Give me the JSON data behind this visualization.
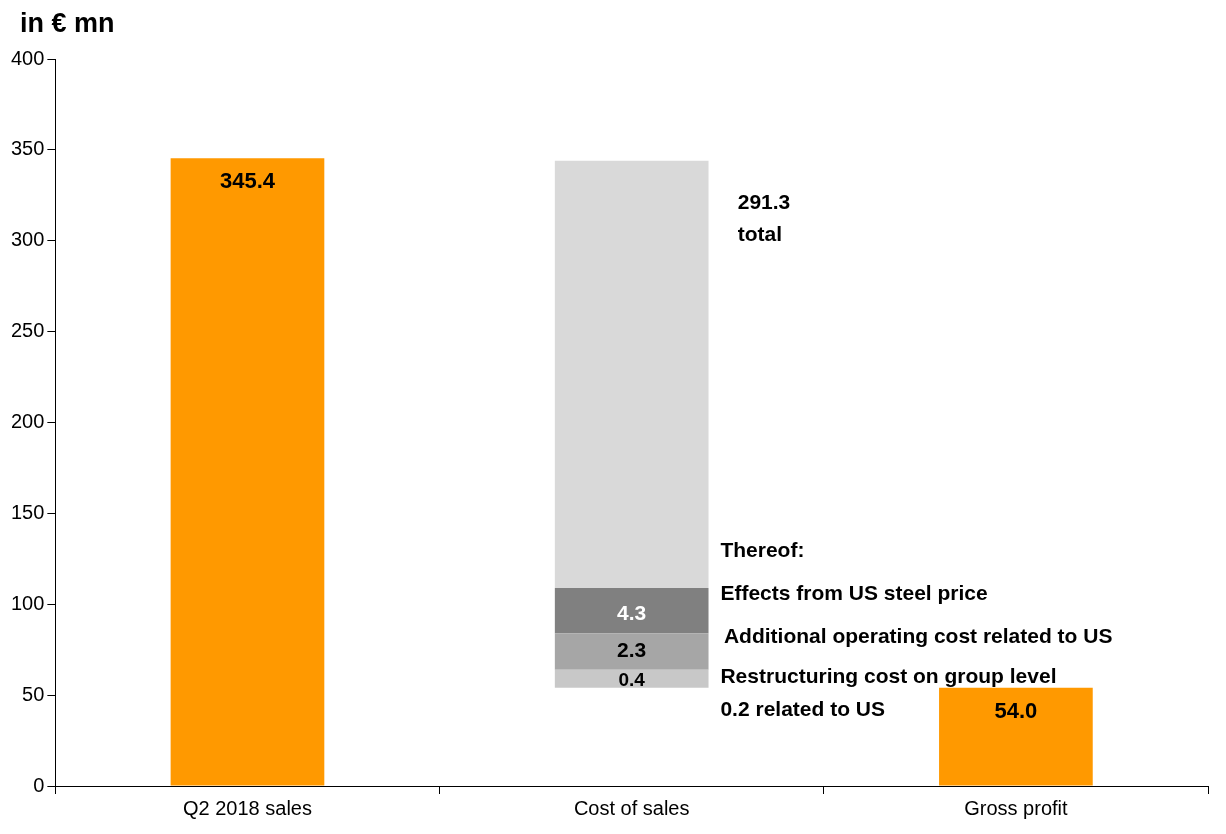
{
  "chart_data": {
    "type": "bar",
    "ylabel": "in € mn",
    "categories": [
      "Q2 2018 sales",
      "Cost of sales",
      "Gross profit"
    ],
    "series": [
      {
        "colors": [
          "#ff9900",
          "#c8c8c8",
          "#ff9900"
        ],
        "base": [
          0,
          54,
          0
        ],
        "values": [
          345.4,
          10,
          54.0
        ],
        "value_labels": [
          "345.4",
          null,
          "54.0"
        ]
      },
      {
        "color": "#a6a6a6",
        "base": [
          null,
          64,
          null
        ],
        "values": [
          null,
          20,
          null
        ]
      },
      {
        "color": "#808080",
        "base": [
          null,
          84,
          null
        ],
        "values": [
          null,
          25,
          null
        ]
      },
      {
        "color": "#d9d9d9",
        "base": [
          null,
          109,
          null
        ],
        "values": [
          null,
          235,
          null
        ]
      }
    ],
    "annotations": [
      "291.3",
      "total",
      "Thereof:",
      "Effects from US steel price",
      "Additional operating cost related to US",
      "Restructuring cost on group level",
      "0.2 related to US",
      "4.3",
      "2.3",
      "0.4"
    ],
    "ylim": [
      0,
      400
    ],
    "yticks": [
      0,
      50,
      100,
      150,
      200,
      250,
      300,
      350,
      400
    ],
    "grid": false,
    "legend": false
  }
}
